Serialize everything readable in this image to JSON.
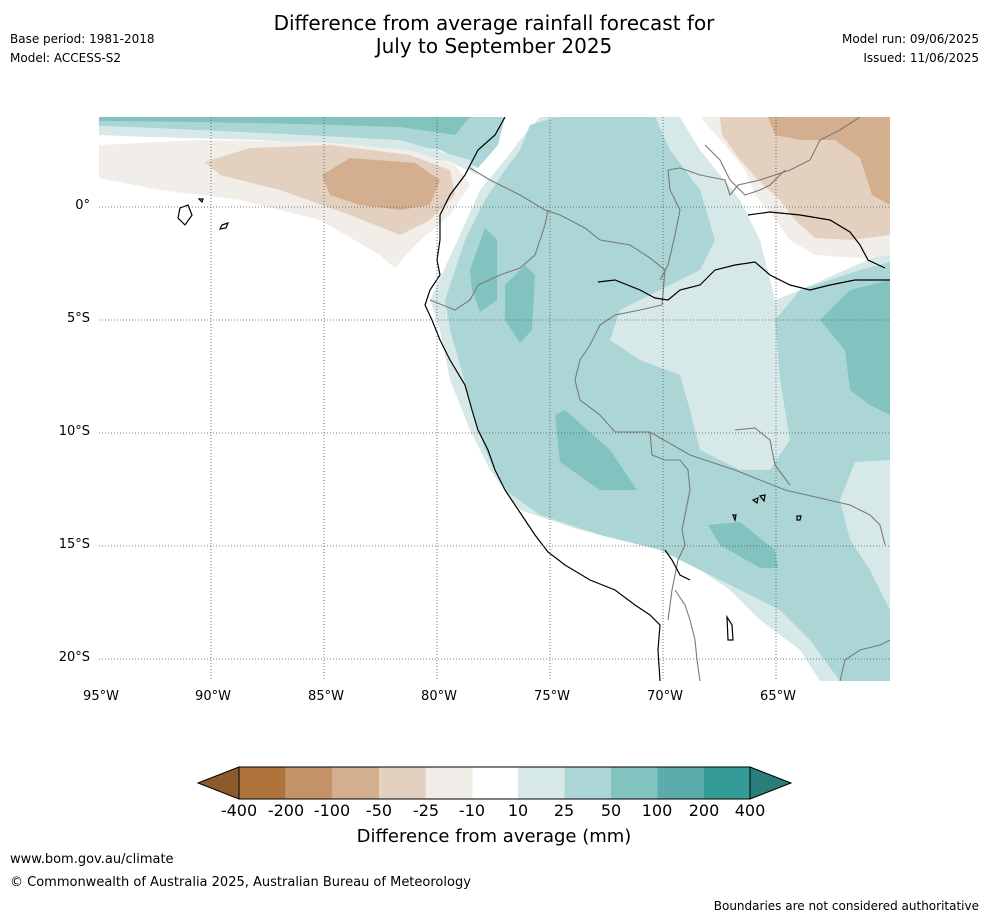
{
  "header": {
    "base_period": "Base period: 1981-2018",
    "model": "Model: ACCESS-S2",
    "title_line1": "Difference from average rainfall forecast for",
    "title_line2": "July to September 2025",
    "model_run": "Model run: 09/06/2025",
    "issued": "Issued: 11/06/2025"
  },
  "map": {
    "lon_labels": [
      "95°W",
      "90°W",
      "85°W",
      "80°W",
      "75°W",
      "70°W",
      "65°W"
    ],
    "lat_labels": [
      "0°",
      "5°S",
      "10°S",
      "15°S",
      "20°S"
    ],
    "colors": {
      "dry_400": "#8c5a2b",
      "dry_200": "#ad733b",
      "dry_100": "#c39267",
      "dry_50": "#d4af8f",
      "dry_25": "#e4d0be",
      "dry_10": "#f1ede9",
      "neutral": "#ffffff",
      "wet_10": "#d6e9e8",
      "wet_25": "#acd6d5",
      "wet_50": "#82c2bf",
      "wet_100": "#5bacaa",
      "wet_200": "#359b96",
      "wet_400": "#2a7e79"
    }
  },
  "colorbar": {
    "ticks": [
      "-400",
      "-200",
      "-100",
      "-50",
      "-25",
      "-10",
      "10",
      "25",
      "50",
      "100",
      "200",
      "400"
    ],
    "label": "Difference from average (mm)"
  },
  "footer": {
    "url": "www.bom.gov.au/climate",
    "copyright": "© Commonwealth of Australia 2025, Australian Bureau of Meteorology",
    "disclaimer": "Boundaries are not considered authoritative"
  }
}
